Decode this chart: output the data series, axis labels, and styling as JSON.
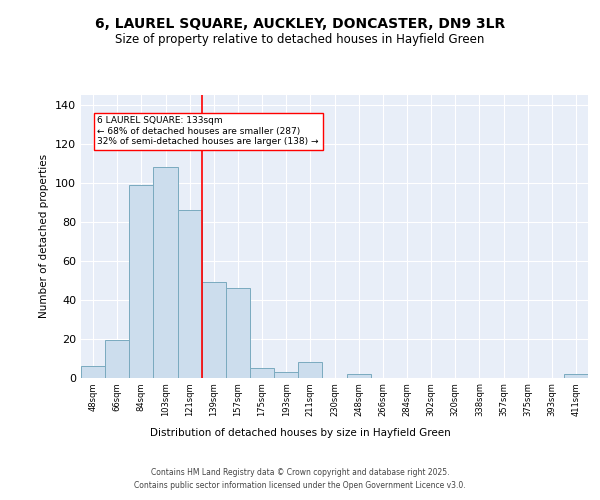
{
  "title_line1": "6, LAUREL SQUARE, AUCKLEY, DONCASTER, DN9 3LR",
  "title_line2": "Size of property relative to detached houses in Hayfield Green",
  "xlabel": "Distribution of detached houses by size in Hayfield Green",
  "ylabel": "Number of detached properties",
  "bar_color": "#ccdded",
  "bar_edge_color": "#7aaabf",
  "bg_color": "#e8eef8",
  "grid_color": "#ffffff",
  "categories": [
    "48sqm",
    "66sqm",
    "84sqm",
    "103sqm",
    "121sqm",
    "139sqm",
    "157sqm",
    "175sqm",
    "193sqm",
    "211sqm",
    "230sqm",
    "248sqm",
    "266sqm",
    "284sqm",
    "302sqm",
    "320sqm",
    "338sqm",
    "357sqm",
    "375sqm",
    "393sqm",
    "411sqm"
  ],
  "values": [
    6,
    19,
    99,
    108,
    86,
    49,
    46,
    5,
    3,
    8,
    0,
    2,
    0,
    0,
    0,
    0,
    0,
    0,
    0,
    0,
    2
  ],
  "vline_x": 4.5,
  "annotation_text": "6 LAUREL SQUARE: 133sqm\n← 68% of detached houses are smaller (287)\n32% of semi-detached houses are larger (138) →",
  "footer_line1": "Contains HM Land Registry data © Crown copyright and database right 2025.",
  "footer_line2": "Contains public sector information licensed under the Open Government Licence v3.0.",
  "ylim": [
    0,
    145
  ],
  "yticks": [
    0,
    20,
    40,
    60,
    80,
    100,
    120,
    140
  ]
}
